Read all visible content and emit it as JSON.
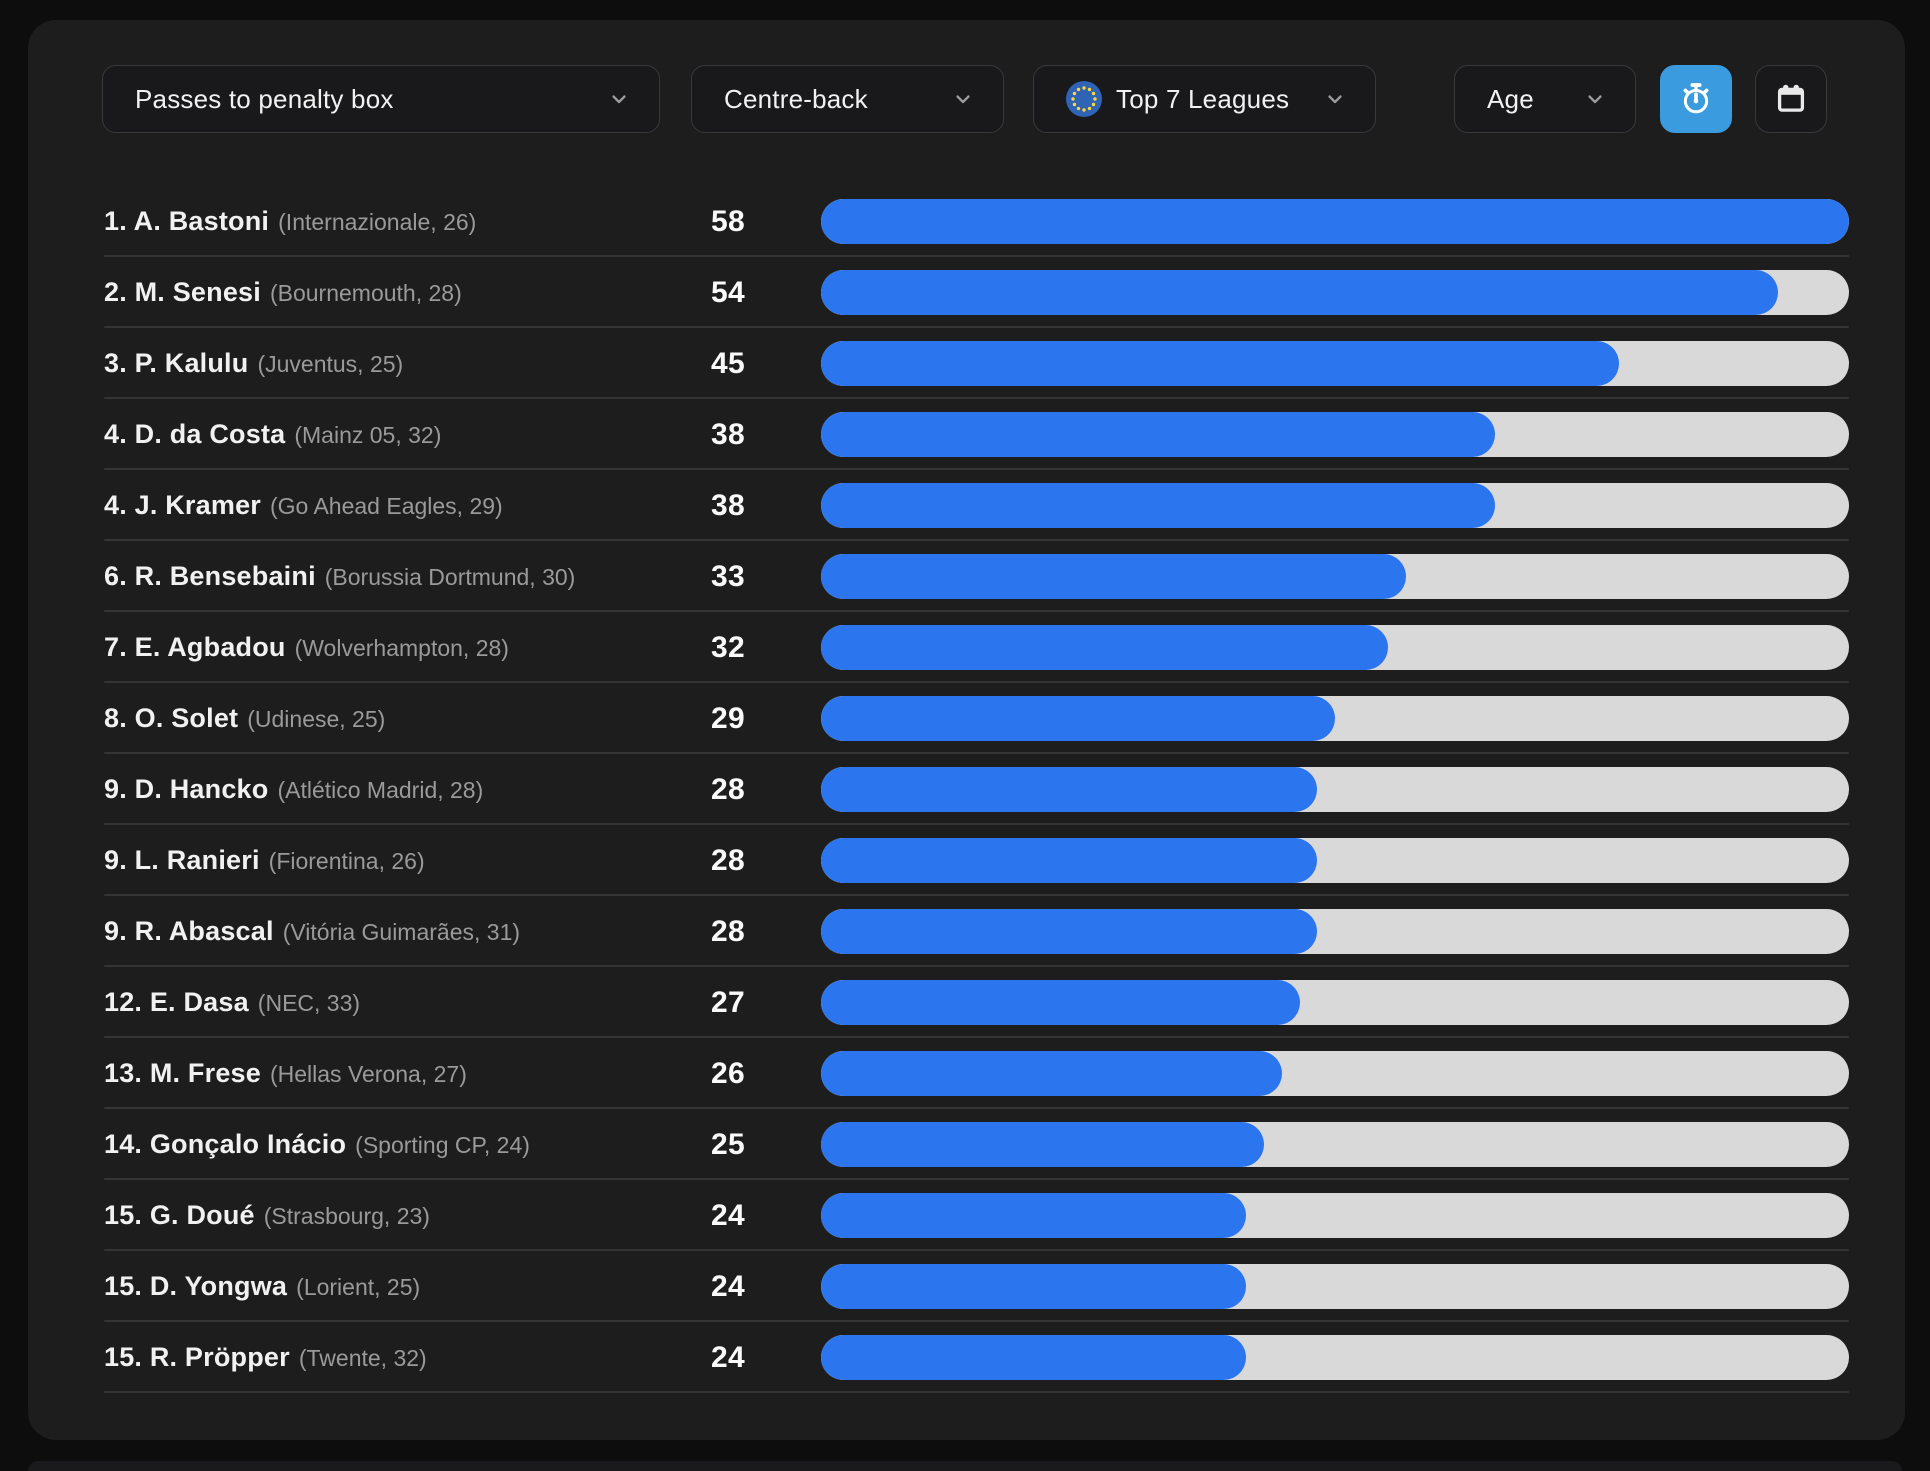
{
  "filter_bar": {
    "stat": {
      "label": "Passes to penalty box"
    },
    "position": {
      "label": "Centre-back"
    },
    "league": {
      "label": "Top 7 Leagues",
      "icon": "eu-flag-icon"
    },
    "age": {
      "label": "Age"
    },
    "per90_button": {
      "icon": "stopwatch-icon",
      "state": "active"
    },
    "date_button": {
      "icon": "calendar-icon",
      "state": "inactive"
    }
  },
  "colors": {
    "page_bg": "#0d0d0e",
    "card_bg": "#1d1d1e",
    "bar_fill": "#2b75ef",
    "bar_track": "#d9d9d9",
    "active_button": "#3b9bdf",
    "eu_flag": "#2f63b4",
    "eu_stars": "#ffd53d"
  },
  "chart_data": {
    "type": "bar",
    "title": "Passes to penalty box",
    "subtitle": "Centre-back · Top 7 Leagues",
    "orientation": "horizontal",
    "max_value": 58,
    "value_range": [
      0,
      58
    ],
    "players": [
      {
        "rank": "1.",
        "name": "A. Bastoni",
        "meta": "(Internazionale, 26)",
        "value": 58
      },
      {
        "rank": "2.",
        "name": "M. Senesi",
        "meta": "(Bournemouth, 28)",
        "value": 54
      },
      {
        "rank": "3.",
        "name": "P. Kalulu",
        "meta": "(Juventus, 25)",
        "value": 45
      },
      {
        "rank": "4.",
        "name": "D. da Costa",
        "meta": "(Mainz 05, 32)",
        "value": 38
      },
      {
        "rank": "4.",
        "name": "J. Kramer",
        "meta": "(Go Ahead Eagles, 29)",
        "value": 38
      },
      {
        "rank": "6.",
        "name": "R. Bensebaini",
        "meta": "(Borussia Dortmund, 30)",
        "value": 33
      },
      {
        "rank": "7.",
        "name": "E. Agbadou",
        "meta": "(Wolverhampton, 28)",
        "value": 32
      },
      {
        "rank": "8.",
        "name": "O. Solet",
        "meta": "(Udinese, 25)",
        "value": 29
      },
      {
        "rank": "9.",
        "name": "D. Hancko",
        "meta": "(Atlético Madrid, 28)",
        "value": 28
      },
      {
        "rank": "9.",
        "name": "L. Ranieri",
        "meta": "(Fiorentina, 26)",
        "value": 28
      },
      {
        "rank": "9.",
        "name": "R. Abascal",
        "meta": "(Vitória Guimarães, 31)",
        "value": 28
      },
      {
        "rank": "12.",
        "name": "E. Dasa",
        "meta": "(NEC, 33)",
        "value": 27
      },
      {
        "rank": "13.",
        "name": "M. Frese",
        "meta": "(Hellas Verona, 27)",
        "value": 26
      },
      {
        "rank": "14.",
        "name": "Gonçalo Inácio",
        "meta": "(Sporting CP, 24)",
        "value": 25
      },
      {
        "rank": "15.",
        "name": "G. Doué",
        "meta": "(Strasbourg, 23)",
        "value": 24
      },
      {
        "rank": "15.",
        "name": "D. Yongwa",
        "meta": "(Lorient, 25)",
        "value": 24
      },
      {
        "rank": "15.",
        "name": "R. Pröpper",
        "meta": "(Twente, 32)",
        "value": 24
      }
    ]
  }
}
